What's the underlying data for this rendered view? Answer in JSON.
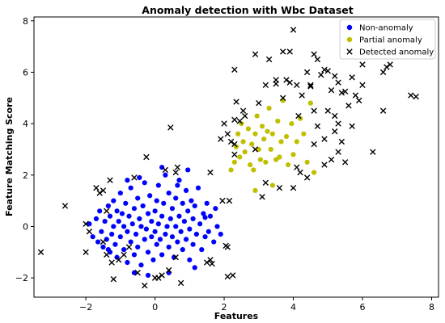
{
  "chart_data": {
    "type": "scatter",
    "title": "Anomaly detection with Wbc Dataset",
    "xlabel": "Features",
    "ylabel": "Feature Matching Score",
    "xlim": [
      -3.5,
      8.2
    ],
    "ylim": [
      -2.75,
      8.15
    ],
    "xticks": [
      -2,
      0,
      2,
      4,
      6,
      8
    ],
    "yticks": [
      -2,
      0,
      2,
      4,
      6,
      8
    ],
    "grid": false,
    "legend_position": "top-right",
    "series": [
      {
        "name": "Non-anomaly",
        "color": "#0000ff",
        "marker": "circle",
        "points": [
          [
            -1.9,
            0.1
          ],
          [
            -1.8,
            -0.4
          ],
          [
            -1.7,
            0.3
          ],
          [
            -1.65,
            -0.6
          ],
          [
            -1.6,
            0.6
          ],
          [
            -1.55,
            -0.2
          ],
          [
            -1.5,
            -0.8
          ],
          [
            -1.45,
            0.2
          ],
          [
            -1.4,
            -0.5
          ],
          [
            -1.35,
            0.8
          ],
          [
            -1.3,
            -1.0
          ],
          [
            -1.3,
            0.4
          ],
          [
            -1.25,
            -0.3
          ],
          [
            -1.2,
            1.0
          ],
          [
            -1.2,
            0.0
          ],
          [
            -1.15,
            -0.7
          ],
          [
            -1.1,
            0.6
          ],
          [
            -1.1,
            -1.2
          ],
          [
            -1.05,
            0.2
          ],
          [
            -1.0,
            -0.4
          ],
          [
            -1.0,
            1.3
          ],
          [
            -0.95,
            0.5
          ],
          [
            -0.9,
            -0.9
          ],
          [
            -0.9,
            0.0
          ],
          [
            -0.85,
            0.9
          ],
          [
            -0.8,
            -0.2
          ],
          [
            -0.8,
            -1.4
          ],
          [
            -0.75,
            0.4
          ],
          [
            -0.7,
            -0.6
          ],
          [
            -0.7,
            1.5
          ],
          [
            -0.65,
            0.1
          ],
          [
            -0.6,
            -1.1
          ],
          [
            -0.6,
            0.7
          ],
          [
            -0.55,
            -0.3
          ],
          [
            -0.5,
            1.1
          ],
          [
            -0.5,
            -0.8
          ],
          [
            -0.45,
            0.3
          ],
          [
            -0.4,
            -1.5
          ],
          [
            -0.4,
            0.0
          ],
          [
            -0.35,
            0.8
          ],
          [
            -0.3,
            -0.5
          ],
          [
            -0.3,
            1.7
          ],
          [
            -0.25,
            -0.1
          ],
          [
            -0.2,
            0.5
          ],
          [
            -0.2,
            -1.0
          ],
          [
            -0.15,
            1.2
          ],
          [
            -0.1,
            -0.4
          ],
          [
            -0.1,
            0.2
          ],
          [
            -0.05,
            -1.3
          ],
          [
            0.0,
            0.6
          ],
          [
            0.0,
            -0.2
          ],
          [
            0.05,
            1.0
          ],
          [
            0.05,
            -0.7
          ],
          [
            0.1,
            0.1
          ],
          [
            0.1,
            1.6
          ],
          [
            0.15,
            -0.5
          ],
          [
            0.2,
            0.4
          ],
          [
            0.2,
            -1.1
          ],
          [
            0.25,
            0.9
          ],
          [
            0.3,
            -0.3
          ],
          [
            0.3,
            2.0
          ],
          [
            0.35,
            0.0
          ],
          [
            0.4,
            -0.8
          ],
          [
            0.4,
            1.3
          ],
          [
            0.45,
            0.3
          ],
          [
            0.5,
            -0.4
          ],
          [
            0.5,
            0.7
          ],
          [
            0.55,
            -1.2
          ],
          [
            0.6,
            1.1
          ],
          [
            0.6,
            0.0
          ],
          [
            0.65,
            -0.6
          ],
          [
            0.7,
            1.8
          ],
          [
            0.7,
            0.4
          ],
          [
            0.75,
            -0.2
          ],
          [
            0.8,
            0.9
          ],
          [
            0.8,
            -0.9
          ],
          [
            0.85,
            0.2
          ],
          [
            0.9,
            1.4
          ],
          [
            0.9,
            -0.5
          ],
          [
            0.95,
            0.6
          ],
          [
            1.0,
            -0.1
          ],
          [
            1.0,
            -1.3
          ],
          [
            1.05,
            1.0
          ],
          [
            1.1,
            0.3
          ],
          [
            1.1,
            -0.7
          ],
          [
            1.15,
            0.8
          ],
          [
            1.2,
            -0.3
          ],
          [
            1.25,
            1.5
          ],
          [
            1.3,
            0.1
          ],
          [
            1.35,
            -0.9
          ],
          [
            1.4,
            0.5
          ],
          [
            1.45,
            -0.4
          ],
          [
            1.5,
            0.9
          ],
          [
            1.55,
            -0.2
          ],
          [
            1.6,
            0.4
          ],
          [
            1.7,
            -0.6
          ],
          [
            1.75,
            0.7
          ],
          [
            1.8,
            0.0
          ],
          [
            1.9,
            -0.3
          ],
          [
            -0.45,
            1.9
          ],
          [
            0.2,
            2.3
          ],
          [
            -0.8,
            1.8
          ],
          [
            0.4,
            -1.8
          ],
          [
            -0.2,
            -1.9
          ],
          [
            1.15,
            -1.6
          ],
          [
            -1.35,
            -0.9
          ],
          [
            1.45,
            0.35
          ],
          [
            0.65,
            1.6
          ],
          [
            -0.6,
            -1.8
          ],
          [
            0.95,
            2.2
          ]
        ]
      },
      {
        "name": "Partial anomaly",
        "color": "#bfbf00",
        "marker": "circle",
        "points": [
          [
            2.3,
            2.5
          ],
          [
            2.35,
            3.1
          ],
          [
            2.4,
            3.6
          ],
          [
            2.45,
            2.7
          ],
          [
            2.5,
            4.0
          ],
          [
            2.55,
            3.3
          ],
          [
            2.6,
            2.9
          ],
          [
            2.7,
            3.8
          ],
          [
            2.75,
            2.4
          ],
          [
            2.8,
            3.2
          ],
          [
            2.85,
            2.2
          ],
          [
            2.9,
            3.6
          ],
          [
            2.95,
            4.3
          ],
          [
            3.0,
            3.0
          ],
          [
            3.05,
            2.6
          ],
          [
            3.1,
            3.9
          ],
          [
            3.15,
            3.4
          ],
          [
            3.2,
            2.5
          ],
          [
            3.25,
            3.7
          ],
          [
            3.3,
            4.6
          ],
          [
            3.35,
            3.0
          ],
          [
            3.4,
            3.6
          ],
          [
            3.5,
            2.6
          ],
          [
            3.55,
            4.1
          ],
          [
            3.6,
            2.7
          ],
          [
            3.65,
            3.3
          ],
          [
            3.7,
            4.9
          ],
          [
            3.8,
            3.5
          ],
          [
            3.85,
            2.4
          ],
          [
            3.95,
            4.0
          ],
          [
            4.0,
            2.8
          ],
          [
            4.1,
            3.3
          ],
          [
            4.2,
            4.2
          ],
          [
            4.3,
            3.6
          ],
          [
            4.4,
            2.5
          ],
          [
            4.5,
            4.8
          ],
          [
            2.2,
            2.2
          ],
          [
            2.9,
            1.4
          ],
          [
            3.4,
            1.6
          ],
          [
            4.6,
            2.1
          ]
        ]
      },
      {
        "name": "Detected anomaly",
        "color": "#000000",
        "marker": "x",
        "points": [
          [
            2.3,
            6.1
          ],
          [
            2.9,
            6.7
          ],
          [
            3.3,
            6.5
          ],
          [
            3.5,
            5.7
          ],
          [
            3.7,
            6.8
          ],
          [
            3.8,
            5.7
          ],
          [
            3.9,
            6.8
          ],
          [
            4.0,
            7.65
          ],
          [
            4.1,
            5.5
          ],
          [
            4.25,
            5.1
          ],
          [
            4.4,
            6.0
          ],
          [
            4.5,
            5.45
          ],
          [
            4.6,
            6.7
          ],
          [
            4.7,
            6.5
          ],
          [
            4.8,
            5.9
          ],
          [
            4.9,
            6.1
          ],
          [
            5.0,
            6.05
          ],
          [
            5.1,
            5.3
          ],
          [
            5.2,
            5.85
          ],
          [
            5.3,
            5.6
          ],
          [
            5.4,
            5.2
          ],
          [
            5.5,
            5.25
          ],
          [
            5.6,
            4.7
          ],
          [
            5.7,
            5.8
          ],
          [
            5.8,
            5.1
          ],
          [
            5.9,
            4.9
          ],
          [
            6.0,
            5.5
          ],
          [
            6.0,
            6.3
          ],
          [
            6.6,
            6.0
          ],
          [
            6.7,
            6.2
          ],
          [
            6.8,
            6.3
          ],
          [
            7.4,
            5.1
          ],
          [
            7.55,
            5.05
          ],
          [
            2.35,
            4.85
          ],
          [
            2.55,
            4.5
          ],
          [
            2.45,
            4.1
          ],
          [
            3.0,
            4.8
          ],
          [
            3.7,
            5.0
          ],
          [
            4.15,
            4.3
          ],
          [
            4.6,
            4.5
          ],
          [
            4.7,
            3.9
          ],
          [
            4.9,
            3.4
          ],
          [
            5.0,
            4.5
          ],
          [
            5.2,
            4.3
          ],
          [
            5.3,
            4.0
          ],
          [
            5.4,
            3.3
          ],
          [
            5.7,
            3.9
          ],
          [
            6.3,
            2.9
          ],
          [
            6.6,
            4.5
          ],
          [
            5.2,
            3.7
          ],
          [
            3.5,
            5.55
          ],
          [
            4.5,
            5.5
          ],
          [
            2.3,
            3.2
          ],
          [
            2.1,
            3.6
          ],
          [
            2.2,
            3.3
          ],
          [
            1.9,
            3.4
          ],
          [
            2.0,
            4.0
          ],
          [
            2.3,
            4.15
          ],
          [
            2.6,
            4.3
          ],
          [
            2.3,
            2.8
          ],
          [
            2.9,
            3.0
          ],
          [
            3.2,
            1.7
          ],
          [
            3.6,
            1.5
          ],
          [
            4.0,
            1.5
          ],
          [
            4.2,
            2.1
          ],
          [
            4.4,
            1.9
          ],
          [
            4.9,
            2.4
          ],
          [
            5.1,
            2.6
          ],
          [
            5.5,
            2.5
          ],
          [
            5.3,
            2.9
          ],
          [
            3.2,
            5.5
          ],
          [
            3.9,
            5.6
          ],
          [
            4.6,
            3.2
          ],
          [
            4.1,
            2.3
          ],
          [
            -3.3,
            -1.0
          ],
          [
            -2.6,
            0.8
          ],
          [
            -2.0,
            0.1
          ],
          [
            -2.0,
            -1.0
          ],
          [
            -1.9,
            -0.2
          ],
          [
            -1.7,
            1.5
          ],
          [
            -1.6,
            1.3
          ],
          [
            -1.5,
            1.4
          ],
          [
            -1.5,
            -0.6
          ],
          [
            -1.4,
            -1.1
          ],
          [
            -1.4,
            0.6
          ],
          [
            -1.3,
            1.8
          ],
          [
            -1.25,
            -1.4
          ],
          [
            -1.2,
            -2.05
          ],
          [
            -1.05,
            -1.3
          ],
          [
            -0.9,
            -1.1
          ],
          [
            -0.75,
            -0.8
          ],
          [
            -0.6,
            1.9
          ],
          [
            -0.5,
            -1.8
          ],
          [
            -0.3,
            -2.3
          ],
          [
            -0.25,
            2.7
          ],
          [
            0.0,
            -2.0
          ],
          [
            0.1,
            -2.0
          ],
          [
            0.2,
            -1.9
          ],
          [
            0.3,
            2.2
          ],
          [
            0.4,
            -1.7
          ],
          [
            0.45,
            3.85
          ],
          [
            0.6,
            -1.2
          ],
          [
            0.6,
            2.1
          ],
          [
            0.65,
            2.3
          ],
          [
            0.75,
            -2.2
          ],
          [
            1.5,
            -1.4
          ],
          [
            1.6,
            -1.3
          ],
          [
            1.65,
            -1.45
          ],
          [
            1.6,
            2.1
          ],
          [
            1.95,
            1.0
          ],
          [
            2.05,
            -0.75
          ],
          [
            2.1,
            -0.8
          ],
          [
            2.1,
            -1.95
          ],
          [
            2.15,
            1.0
          ],
          [
            2.25,
            -1.9
          ],
          [
            3.1,
            1.15
          ]
        ]
      }
    ]
  }
}
